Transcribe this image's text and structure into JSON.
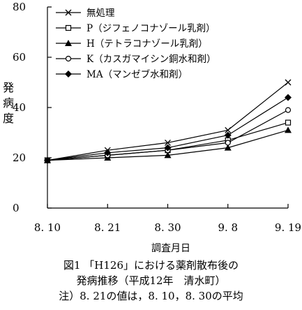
{
  "chart_data": {
    "type": "line",
    "x": [
      "8. 10",
      "8. 21",
      "8. 30",
      "9. 8",
      "9. 19"
    ],
    "xlabel": "調査月日",
    "ylabel": "発病度",
    "ylim": [
      0,
      80
    ],
    "yticks": [
      "0",
      "20",
      "40",
      "60",
      "80"
    ],
    "grid": false,
    "legend_position": "top-left",
    "series": [
      {
        "name": "無処理",
        "marker": "x",
        "values": [
          19,
          23,
          26,
          31,
          50
        ]
      },
      {
        "name": "P（ジフェノコナゾール乳剤）",
        "marker": "square-open",
        "values": [
          19,
          21,
          23,
          27,
          34
        ]
      },
      {
        "name": "H（テトラコナゾール乳剤）",
        "marker": "triangle-filled",
        "values": [
          19,
          20,
          21,
          24,
          31
        ]
      },
      {
        "name": "K（カスガマイシン銅水和剤）",
        "marker": "circle-open",
        "values": [
          19,
          21,
          23,
          26,
          39
        ]
      },
      {
        "name": "MA（マンゼブ水和剤）",
        "marker": "diamond-filled",
        "values": [
          19,
          22,
          24,
          29,
          44
        ]
      }
    ]
  },
  "caption": {
    "line1": "図1 「H126」における薬剤散布後の",
    "line2": "発病推移（平成12年　清水町）",
    "line3": "注）8. 21の値は，8. 10，8. 30の平均"
  },
  "colors": {
    "ink": "#000000",
    "background": "#ffffff"
  }
}
